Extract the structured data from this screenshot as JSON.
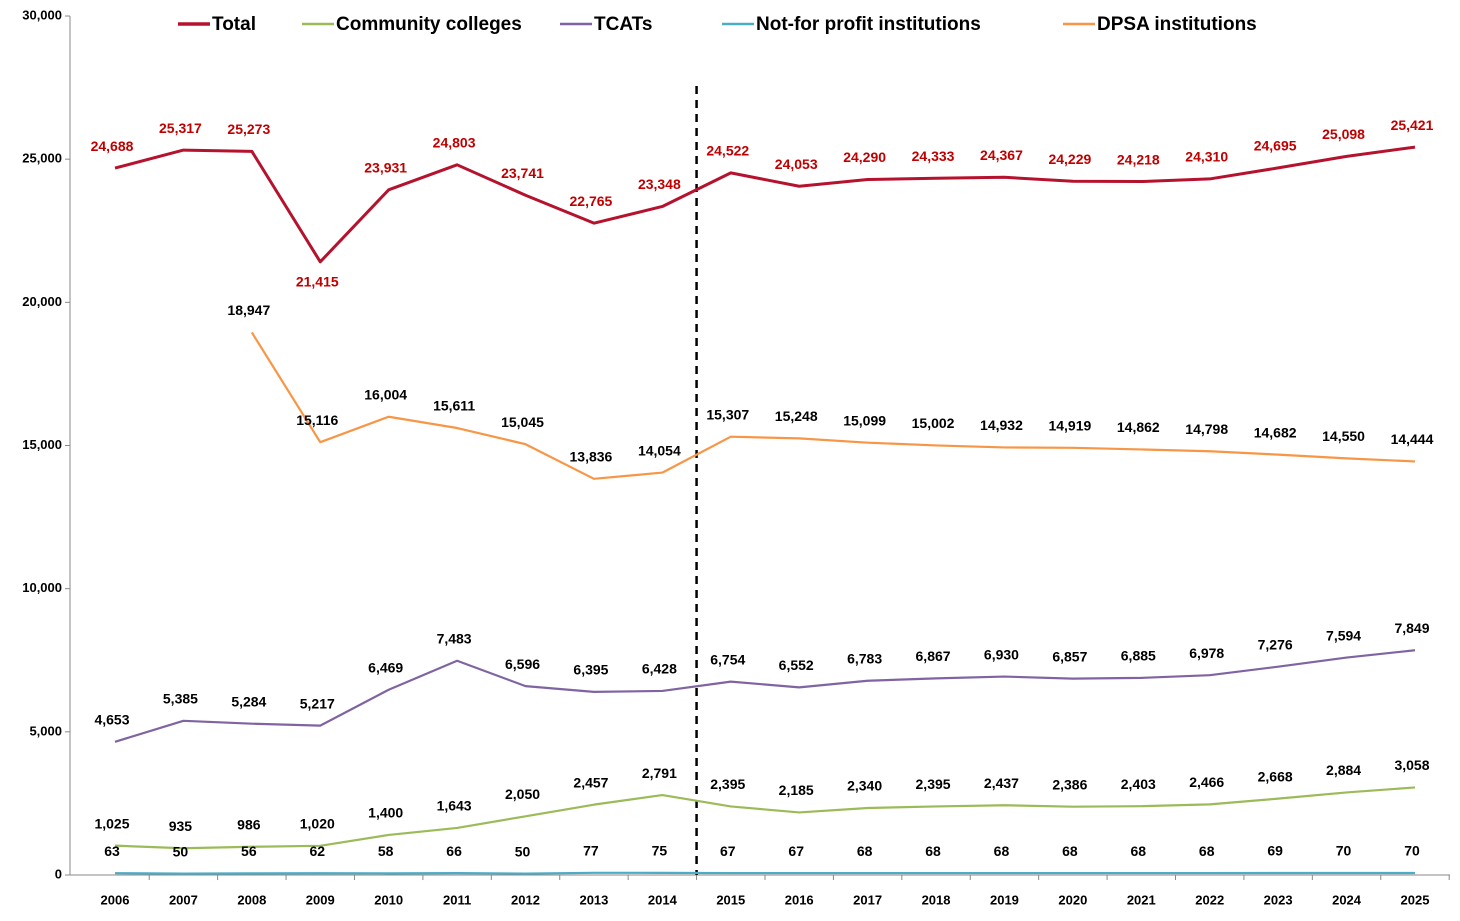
{
  "chart_data": {
    "type": "line",
    "categories": [
      "2006",
      "2007",
      "2008",
      "2009",
      "2010",
      "2011",
      "2012",
      "2013",
      "2014",
      "2015",
      "2016",
      "2017",
      "2018",
      "2019",
      "2020",
      "2021",
      "2022",
      "2023",
      "2024",
      "2025"
    ],
    "series": [
      {
        "name": "Total",
        "color": "#b5122e",
        "values": [
          24688,
          25317,
          25273,
          21415,
          23931,
          24803,
          23741,
          22765,
          23348,
          24522,
          24053,
          24290,
          24333,
          24367,
          24229,
          24218,
          24310,
          24695,
          25098,
          25421
        ],
        "value_labels": [
          "24,688",
          "25,317",
          "25,273",
          "21,415",
          "23,931",
          "24,803",
          "23,741",
          "22,765",
          "23,348",
          "24,522",
          "24,053",
          "24,290",
          "24,333",
          "24,367",
          "24,229",
          "24,218",
          "24,310",
          "24,695",
          "25,098",
          "25,421"
        ]
      },
      {
        "name": "Community colleges",
        "color": "#9bbb59",
        "values": [
          1025,
          935,
          986,
          1020,
          1400,
          1643,
          2050,
          2457,
          2791,
          2395,
          2185,
          2340,
          2395,
          2437,
          2386,
          2403,
          2466,
          2668,
          2884,
          3058
        ],
        "value_labels": [
          "1,025",
          "935",
          "986",
          "1,020",
          "1,400",
          "1,643",
          "2,050",
          "2,457",
          "2,791",
          "2,395",
          "2,185",
          "2,340",
          "2,395",
          "2,437",
          "2,386",
          "2,403",
          "2,466",
          "2,668",
          "2,884",
          "3,058"
        ]
      },
      {
        "name": "TCATs",
        "color": "#8064a2",
        "values": [
          4653,
          5385,
          5284,
          5217,
          6469,
          7483,
          6596,
          6395,
          6428,
          6754,
          6552,
          6783,
          6867,
          6930,
          6857,
          6885,
          6978,
          7276,
          7594,
          7849
        ],
        "value_labels": [
          "4,653",
          "5,385",
          "5,284",
          "5,217",
          "6,469",
          "7,483",
          "6,596",
          "6,395",
          "6,428",
          "6,754",
          "6,552",
          "6,783",
          "6,867",
          "6,930",
          "6,857",
          "6,885",
          "6,978",
          "7,276",
          "7,594",
          "7,849"
        ]
      },
      {
        "name": "Not-for profit institutions",
        "color": "#4bacc6",
        "values": [
          63,
          50,
          56,
          62,
          58,
          66,
          50,
          77,
          75,
          67,
          67,
          68,
          68,
          68,
          68,
          68,
          68,
          69,
          70,
          70
        ],
        "value_labels": [
          "63",
          "50",
          "56",
          "62",
          "58",
          "66",
          "50",
          "77",
          "75",
          "67",
          "67",
          "68",
          "68",
          "68",
          "68",
          "68",
          "68",
          "69",
          "70",
          "70"
        ]
      },
      {
        "name": "DPSA institutions",
        "color": "#f79646",
        "values": [
          null,
          null,
          18947,
          15116,
          16004,
          15611,
          15045,
          13836,
          14054,
          15307,
          15248,
          15099,
          15002,
          14932,
          14919,
          14862,
          14798,
          14682,
          14550,
          14444
        ],
        "value_labels": [
          null,
          null,
          "18,947",
          "15,116",
          "16,004",
          "15,611",
          "15,045",
          "13,836",
          "14,054",
          "15,307",
          "15,248",
          "15,099",
          "15,002",
          "14,932",
          "14,919",
          "14,862",
          "14,798",
          "14,682",
          "14,550",
          "14,444"
        ]
      }
    ],
    "ylim": [
      0,
      30000
    ],
    "yticks": [
      0,
      {
        "value": 5000,
        "label": "5,000"
      },
      {
        "value": 10000,
        "label": "10,000"
      },
      {
        "value": 15000,
        "label": "15,000"
      },
      {
        "value": 20000,
        "label": "20,000"
      },
      {
        "value": 25000,
        "label": "25,000"
      },
      {
        "value": 30000,
        "label": "30,000"
      }
    ],
    "legend": "top"
  }
}
